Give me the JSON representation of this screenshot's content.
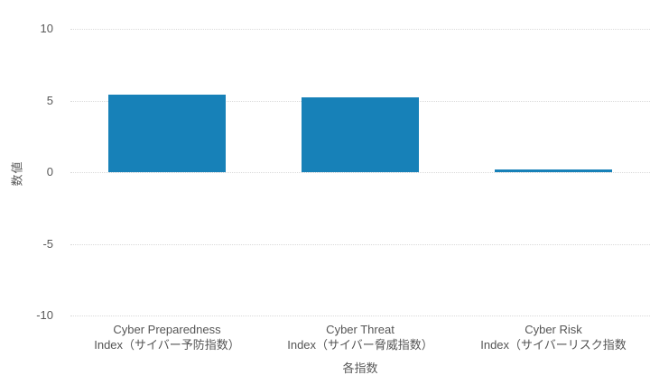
{
  "colors": {
    "bar": "#1781b8",
    "grid": "#d9d9d9",
    "text": "#595959",
    "background": "#ffffff"
  },
  "chart_data": {
    "type": "bar",
    "title": "",
    "xlabel": "各指数",
    "ylabel": "数値",
    "ylim": [
      -10,
      10
    ],
    "grid": "horizontal dotted lines, no axis lines, legend none",
    "yticks": [
      {
        "value": 10,
        "label": "10"
      },
      {
        "value": 5,
        "label": "5"
      },
      {
        "value": 0,
        "label": "0"
      },
      {
        "value": -5,
        "label": "-5"
      },
      {
        "value": -10,
        "label": "-10"
      }
    ],
    "categories": [
      {
        "line1": "Cyber Preparedness",
        "line2": "Index（サイバー予防指数）"
      },
      {
        "line1": "Cyber Threat",
        "line2": "Index（サイバー脅威指数）"
      },
      {
        "line1": "Cyber Risk",
        "line2": "Index（サイバーリスク指数"
      }
    ],
    "values": [
      5.4,
      5.2,
      0.1
    ]
  }
}
